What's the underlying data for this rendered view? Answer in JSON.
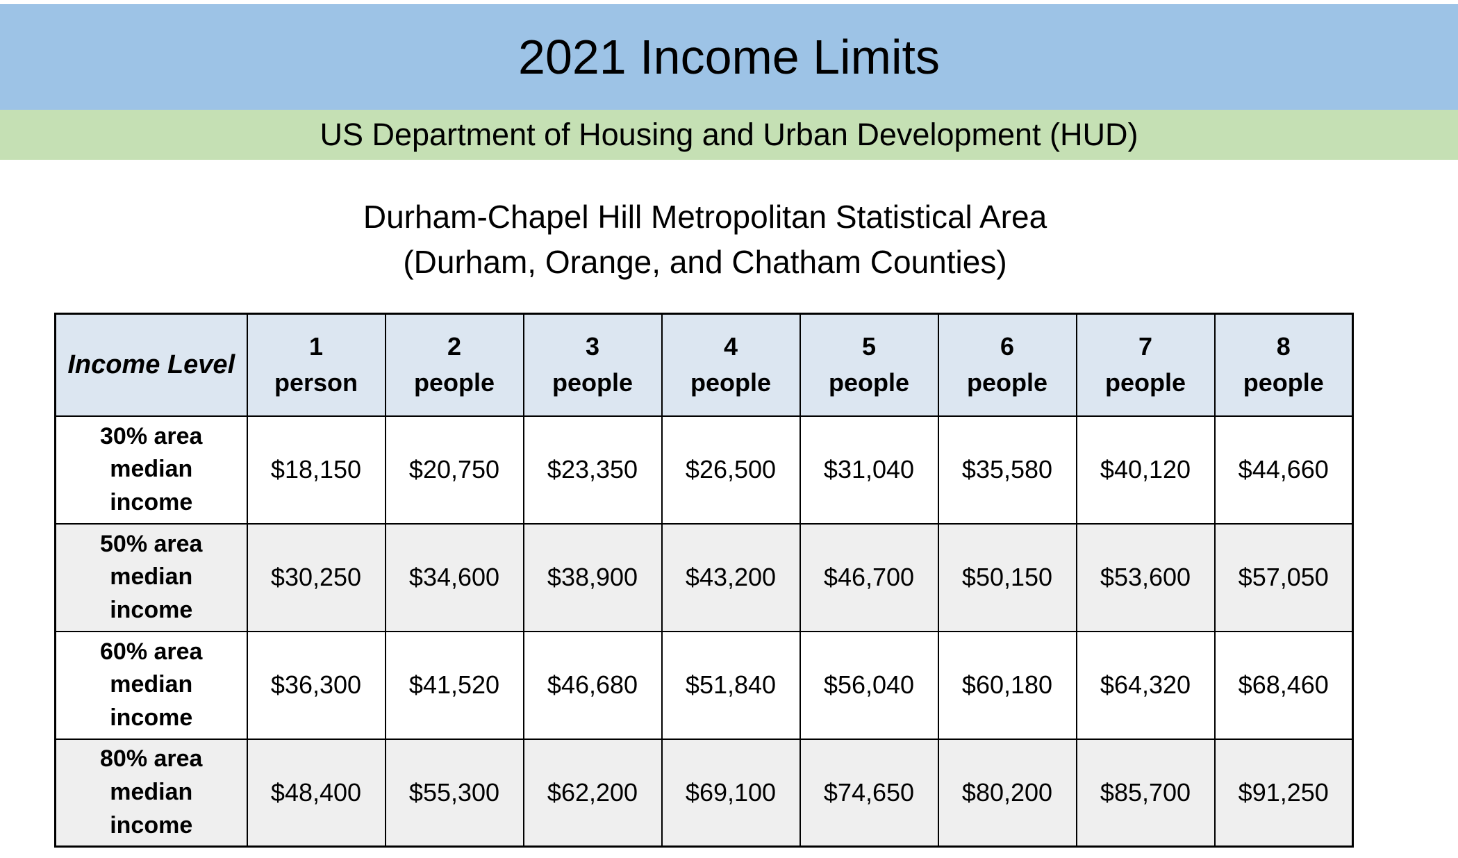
{
  "title": "2021 Income Limits",
  "agency_band": "US Department of Housing and Urban Development (HUD)",
  "area": {
    "line1": "Durham-Chapel Hill Metropolitan Statistical Area",
    "line2": "(Durham, Orange, and Chatham Counties)"
  },
  "colors": {
    "title_band": "#9dc3e6",
    "agency_band": "#c5e0b4",
    "header_cell": "#dce6f1",
    "stripe_row": "#efefef",
    "border": "#000000"
  },
  "table": {
    "corner_header": "Income Level",
    "column_headers": [
      {
        "line1": "1",
        "line2": "person"
      },
      {
        "line1": "2",
        "line2": "people"
      },
      {
        "line1": "3",
        "line2": "people"
      },
      {
        "line1": "4",
        "line2": "people"
      },
      {
        "line1": "5",
        "line2": "people"
      },
      {
        "line1": "6",
        "line2": "people"
      },
      {
        "line1": "7",
        "line2": "people"
      },
      {
        "line1": "8",
        "line2": "people"
      }
    ],
    "rows": [
      {
        "label_lines": [
          "30% area",
          "median",
          "income"
        ],
        "values": [
          "$18,150",
          "$20,750",
          "$23,350",
          "$26,500",
          "$31,040",
          "$35,580",
          "$40,120",
          "$44,660"
        ]
      },
      {
        "label_lines": [
          "50% area",
          "median",
          "income"
        ],
        "values": [
          "$30,250",
          "$34,600",
          "$38,900",
          "$43,200",
          "$46,700",
          "$50,150",
          "$53,600",
          "$57,050"
        ]
      },
      {
        "label_lines": [
          "60% area",
          "median",
          "income"
        ],
        "values": [
          "$36,300",
          "$41,520",
          "$46,680",
          "$51,840",
          "$56,040",
          "$60,180",
          "$64,320",
          "$68,460"
        ]
      },
      {
        "label_lines": [
          "80% area",
          "median",
          "income"
        ],
        "values": [
          "$48,400",
          "$55,300",
          "$62,200",
          "$69,100",
          "$74,650",
          "$80,200",
          "$85,700",
          "$91,250"
        ]
      }
    ]
  }
}
